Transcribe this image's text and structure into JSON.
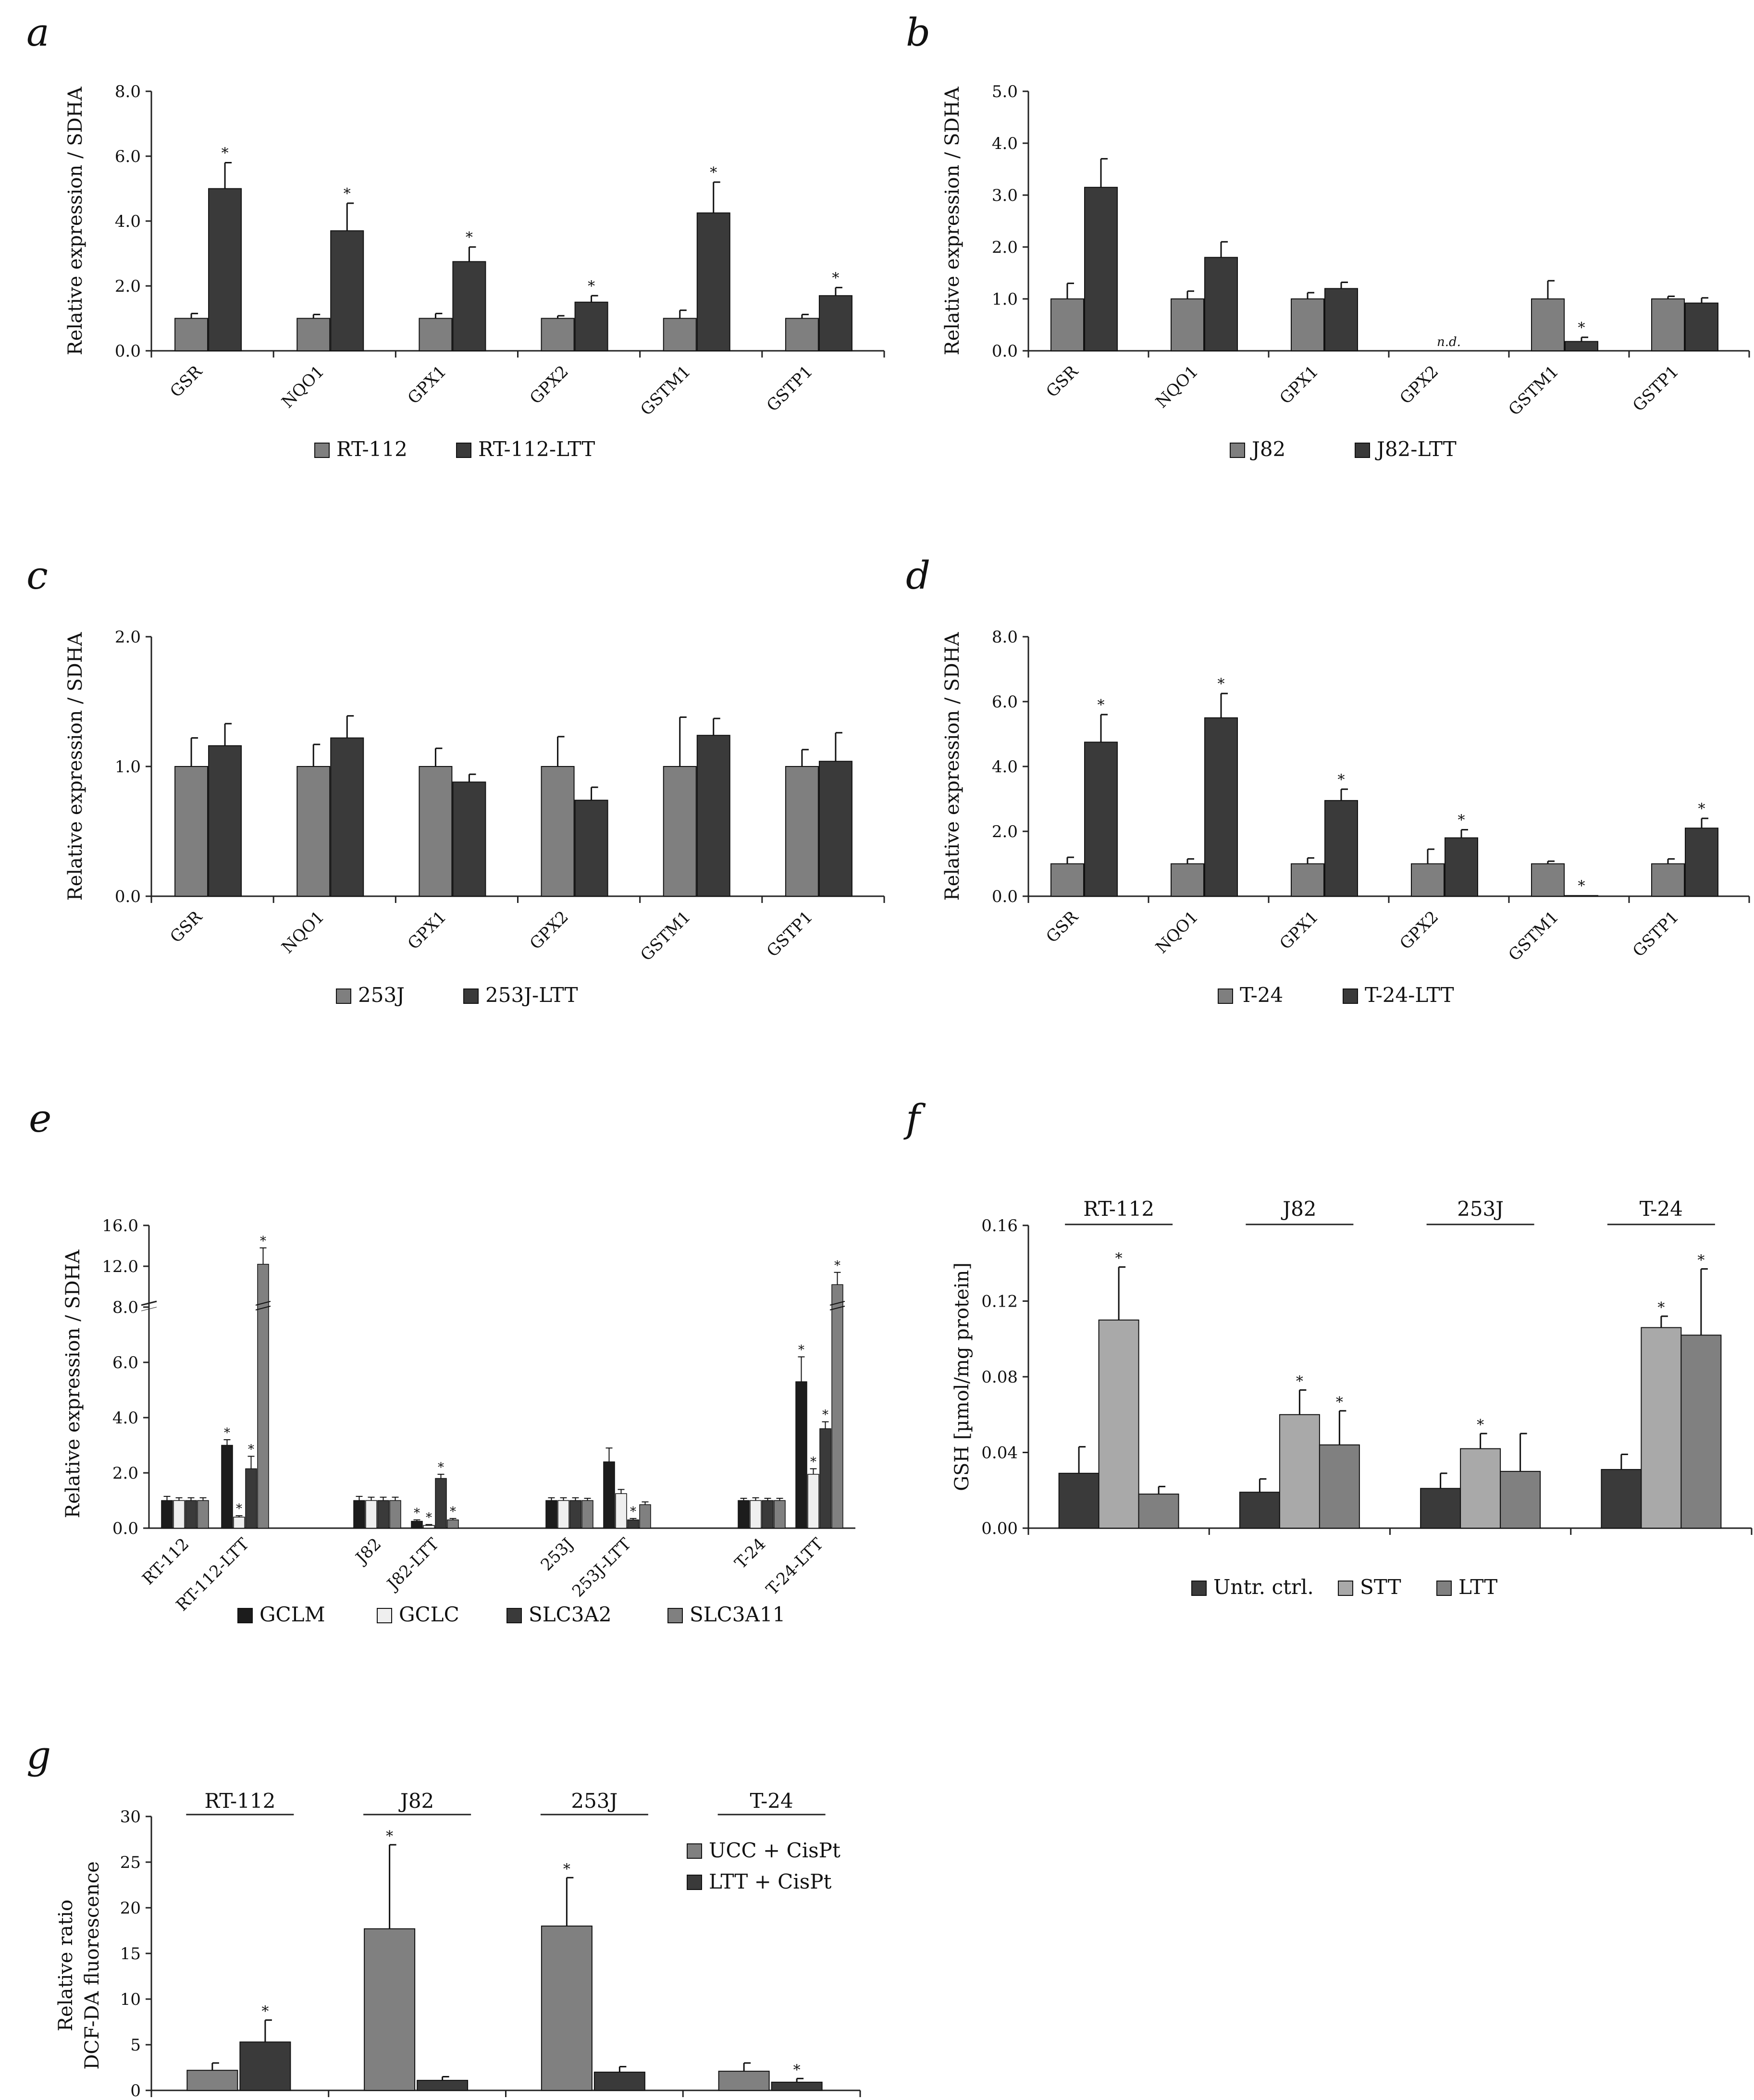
{
  "colors": {
    "gray": "#7f7f7f",
    "dark": "#3a3a3a",
    "black": "#1c1c1c",
    "white": "#efefef",
    "light": "#a9a9a9",
    "mid": "#808080"
  },
  "chart_data": [
    {
      "panel": "a",
      "type": "bar",
      "ylabel": "Relative expression / SDHA",
      "ylim": [
        0,
        8
      ],
      "yticks": [
        "0.0",
        "2.0",
        "4.0",
        "6.0",
        "8.0"
      ],
      "categories": [
        "GSR",
        "NQO1",
        "GPX1",
        "GPX2",
        "GSTM1",
        "GSTP1"
      ],
      "series": [
        {
          "name": "RT-112",
          "color": "gray",
          "values": [
            1.0,
            1.0,
            1.0,
            1.0,
            1.0,
            1.0
          ],
          "errors": [
            0.15,
            0.12,
            0.15,
            0.08,
            0.25,
            0.12
          ],
          "stars": [
            false,
            false,
            false,
            false,
            false,
            false
          ]
        },
        {
          "name": "RT-112-LTT",
          "color": "dark",
          "values": [
            5.0,
            3.7,
            2.75,
            1.5,
            4.25,
            1.7
          ],
          "errors": [
            0.8,
            0.85,
            0.45,
            0.2,
            0.95,
            0.25
          ],
          "stars": [
            true,
            true,
            true,
            true,
            true,
            true
          ]
        }
      ],
      "legend": [
        "RT-112",
        "RT-112-LTT"
      ]
    },
    {
      "panel": "b",
      "type": "bar",
      "ylabel": "Relative expression / SDHA",
      "ylim": [
        0,
        5
      ],
      "yticks": [
        "0.0",
        "1.0",
        "2.0",
        "3.0",
        "4.0",
        "5.0"
      ],
      "categories": [
        "GSR",
        "NQO1",
        "GPX1",
        "GPX2",
        "GSTM1",
        "GSTP1"
      ],
      "series": [
        {
          "name": "J82",
          "color": "gray",
          "values": [
            1.0,
            1.0,
            1.0,
            0,
            1.0,
            1.0
          ],
          "errors": [
            0.3,
            0.15,
            0.12,
            0,
            0.35,
            0.05
          ],
          "stars": [
            false,
            false,
            false,
            false,
            false,
            false
          ]
        },
        {
          "name": "J82-LTT",
          "color": "dark",
          "values": [
            3.15,
            1.8,
            1.2,
            0,
            0.18,
            0.92
          ],
          "errors": [
            0.55,
            0.3,
            0.12,
            0,
            0.08,
            0.1
          ],
          "stars": [
            false,
            false,
            false,
            false,
            true,
            false
          ]
        }
      ],
      "annotations": [
        {
          "category": "GPX2",
          "text": "n.d."
        }
      ],
      "legend": [
        "J82",
        "J82-LTT"
      ]
    },
    {
      "panel": "c",
      "type": "bar",
      "ylabel": "Relative expression / SDHA",
      "ylim": [
        0,
        2
      ],
      "yticks": [
        "0.0",
        "1.0",
        "2.0"
      ],
      "categories": [
        "GSR",
        "NQO1",
        "GPX1",
        "GPX2",
        "GSTM1",
        "GSTP1"
      ],
      "series": [
        {
          "name": "253J",
          "color": "gray",
          "values": [
            1.0,
            1.0,
            1.0,
            1.0,
            1.0,
            1.0
          ],
          "errors": [
            0.22,
            0.17,
            0.14,
            0.23,
            0.38,
            0.13
          ],
          "stars": [
            false,
            false,
            false,
            false,
            false,
            false
          ]
        },
        {
          "name": "253J-LTT",
          "color": "dark",
          "values": [
            1.16,
            1.22,
            0.88,
            0.74,
            1.24,
            1.04
          ],
          "errors": [
            0.17,
            0.17,
            0.06,
            0.1,
            0.13,
            0.22
          ],
          "stars": [
            false,
            false,
            false,
            false,
            false,
            false
          ]
        }
      ],
      "legend": [
        "253J",
        "253J-LTT"
      ]
    },
    {
      "panel": "d",
      "type": "bar",
      "ylabel": "Relative expression / SDHA",
      "ylim": [
        0,
        8
      ],
      "yticks": [
        "0.0",
        "2.0",
        "4.0",
        "6.0",
        "8.0"
      ],
      "categories": [
        "GSR",
        "NQO1",
        "GPX1",
        "GPX2",
        "GSTM1",
        "GSTP1"
      ],
      "series": [
        {
          "name": "T-24",
          "color": "gray",
          "values": [
            1.0,
            1.0,
            1.0,
            1.0,
            1.0,
            1.0
          ],
          "errors": [
            0.2,
            0.15,
            0.18,
            0.45,
            0.08,
            0.15
          ],
          "stars": [
            false,
            false,
            false,
            false,
            false,
            false
          ]
        },
        {
          "name": "T-24-LTT",
          "color": "dark",
          "values": [
            4.75,
            5.5,
            2.95,
            1.8,
            0.02,
            2.1
          ],
          "errors": [
            0.85,
            0.75,
            0.35,
            0.25,
            0,
            0.3
          ],
          "stars": [
            true,
            true,
            true,
            true,
            true,
            true
          ]
        }
      ],
      "legend": [
        "T-24",
        "T-24-LTT"
      ]
    },
    {
      "panel": "e",
      "type": "bar",
      "ylabel": "Relative expression / SDHA",
      "yticks": [
        "0.0",
        "2.0",
        "4.0",
        "6.0",
        "8.0",
        "12.0",
        "16.0"
      ],
      "axis_break": {
        "lower": [
          0,
          8
        ],
        "upper": [
          8,
          16
        ]
      },
      "categories": [
        "RT-112",
        "RT-112-LTT",
        "J82",
        "J82-LTT",
        "253J",
        "253J-LTT",
        "T-24",
        "T-24-LTT"
      ],
      "series": [
        {
          "name": "GCLM",
          "color": "black",
          "values": [
            1.0,
            3.0,
            1.0,
            0.25,
            1.0,
            2.4,
            1.0,
            5.3
          ],
          "errors": [
            0.15,
            0.2,
            0.15,
            0.05,
            0.1,
            0.5,
            0.08,
            0.9
          ],
          "stars": [
            false,
            true,
            false,
            true,
            false,
            false,
            false,
            true
          ]
        },
        {
          "name": "GCLC",
          "color": "white",
          "values": [
            1.0,
            0.4,
            1.0,
            0.1,
            1.0,
            1.25,
            1.0,
            1.95
          ],
          "errors": [
            0.1,
            0.05,
            0.12,
            0.03,
            0.1,
            0.15,
            0.1,
            0.2
          ],
          "stars": [
            false,
            true,
            false,
            true,
            false,
            false,
            false,
            true
          ]
        },
        {
          "name": "SLC3A2",
          "color": "dark",
          "values": [
            1.0,
            2.15,
            1.0,
            1.8,
            1.0,
            0.3,
            1.0,
            3.6
          ],
          "errors": [
            0.1,
            0.45,
            0.12,
            0.15,
            0.1,
            0.05,
            0.08,
            0.25
          ],
          "stars": [
            false,
            true,
            false,
            true,
            false,
            true,
            false,
            true
          ]
        },
        {
          "name": "SLC3A11",
          "color": "mid",
          "values": [
            1.0,
            12.2,
            1.0,
            0.3,
            1.0,
            0.85,
            1.0,
            10.2
          ],
          "errors": [
            0.1,
            1.6,
            0.12,
            0.05,
            0.08,
            0.1,
            0.08,
            1.2
          ],
          "stars": [
            false,
            true,
            false,
            true,
            false,
            false,
            false,
            true
          ]
        }
      ],
      "legend": [
        "GCLM",
        "GCLC",
        "SLC3A2",
        "SLC3A11"
      ]
    },
    {
      "panel": "f",
      "type": "bar",
      "ylabel": "GSH [µmol/mg protein]",
      "ylim": [
        0,
        0.16
      ],
      "yticks": [
        "0.00",
        "0.04",
        "0.08",
        "0.12",
        "0.16"
      ],
      "categories": [
        "RT-112",
        "J82",
        "253J",
        "T-24"
      ],
      "series": [
        {
          "name": "Untr. ctrl.",
          "color": "dark",
          "values": [
            0.029,
            0.019,
            0.021,
            0.031
          ],
          "errors": [
            0.014,
            0.007,
            0.008,
            0.008
          ],
          "stars": [
            false,
            false,
            false,
            false
          ]
        },
        {
          "name": "STT",
          "color": "light",
          "values": [
            0.11,
            0.06,
            0.042,
            0.106
          ],
          "errors": [
            0.028,
            0.013,
            0.008,
            0.006
          ],
          "stars": [
            true,
            true,
            true,
            true
          ]
        },
        {
          "name": "LTT",
          "color": "mid",
          "values": [
            0.018,
            0.044,
            0.03,
            0.102
          ],
          "errors": [
            0.004,
            0.018,
            0.02,
            0.035
          ],
          "stars": [
            false,
            true,
            false,
            true
          ]
        }
      ],
      "legend": [
        "Untr. ctrl.",
        "STT",
        "LTT"
      ]
    },
    {
      "panel": "g",
      "type": "bar",
      "ylabel": [
        "Relative ratio",
        "DCF-DA fluorescence"
      ],
      "ylim": [
        0,
        30
      ],
      "yticks": [
        "0",
        "5",
        "10",
        "15",
        "20",
        "25",
        "30"
      ],
      "categories": [
        "RT-112",
        "J82",
        "253J",
        "T-24"
      ],
      "series": [
        {
          "name": "UCC + CisPt",
          "color": "mid",
          "values": [
            2.2,
            17.7,
            18.0,
            2.1
          ],
          "errors": [
            0.8,
            9.2,
            5.3,
            0.9
          ],
          "stars": [
            false,
            true,
            true,
            false
          ]
        },
        {
          "name": "LTT + CisPt",
          "color": "dark",
          "values": [
            5.3,
            1.1,
            2.0,
            0.9
          ],
          "errors": [
            2.4,
            0.4,
            0.6,
            0.4
          ],
          "stars": [
            true,
            false,
            false,
            true
          ]
        }
      ],
      "legend": [
        "UCC + CisPt",
        "LTT + CisPt"
      ]
    }
  ]
}
